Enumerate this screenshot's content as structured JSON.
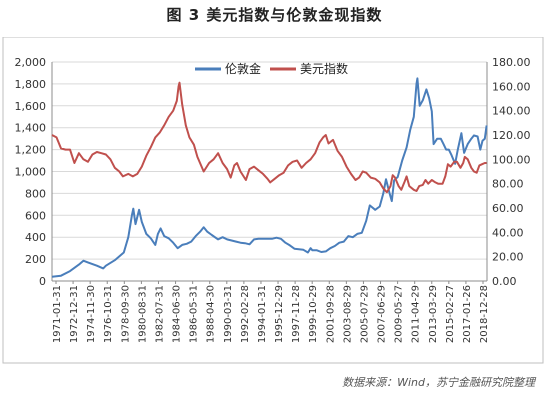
{
  "figure": {
    "title": "图 3   美元指数与伦敦金现指数",
    "source": "数据来源：Wind，苏宁金融研究院整理"
  },
  "colors": {
    "gold": "#4a7ebb",
    "dxy": "#c0504d",
    "grid": "#d9d9d9",
    "axis": "#8c8c8c",
    "frame": "#bfbfbf"
  },
  "chart_data": {
    "type": "line",
    "legend_position": "top-center",
    "grid": true,
    "x_labels": [
      "1971-01-31",
      "1972-12-31",
      "1974-11-30",
      "1976-10-31",
      "1978-09-30",
      "1980-08-31",
      "1982-07-31",
      "1984-06-30",
      "1986-05-31",
      "1988-04-30",
      "1990-03-31",
      "1992-02-28",
      "1994-01-31",
      "1995-12-29",
      "1997-11-28",
      "1999-10-29",
      "2001-09-28",
      "2003-08-29",
      "2005-07-29",
      "2007-06-29",
      "2009-05-27",
      "2011-04-29",
      "2013-03-29",
      "2015-02-27",
      "2017-01-26",
      "2018-12-28"
    ],
    "y_left": {
      "ticks": [
        "0",
        "200",
        "400",
        "600",
        "800",
        "1,000",
        "1,200",
        "1,400",
        "1,600",
        "1,800",
        "2,000"
      ],
      "lim": [
        0,
        2000
      ]
    },
    "y_right": {
      "ticks": [
        "0.00",
        "20.00",
        "40.00",
        "60.00",
        "80.00",
        "100.00",
        "120.00",
        "140.00",
        "160.00",
        "180.00"
      ],
      "lim": [
        0,
        180
      ]
    },
    "series": [
      {
        "name": "伦敦金",
        "axis": "left",
        "points": [
          [
            1971.0,
            38
          ],
          [
            1972.0,
            48
          ],
          [
            1973.0,
            90
          ],
          [
            1974.0,
            150
          ],
          [
            1974.5,
            185
          ],
          [
            1975.0,
            170
          ],
          [
            1976.0,
            140
          ],
          [
            1976.7,
            115
          ],
          [
            1977.0,
            140
          ],
          [
            1978.0,
            190
          ],
          [
            1979.0,
            260
          ],
          [
            1979.5,
            400
          ],
          [
            1979.9,
            600
          ],
          [
            1980.05,
            660
          ],
          [
            1980.3,
            520
          ],
          [
            1980.7,
            650
          ],
          [
            1981.0,
            540
          ],
          [
            1981.5,
            430
          ],
          [
            1982.0,
            390
          ],
          [
            1982.5,
            330
          ],
          [
            1982.8,
            430
          ],
          [
            1983.1,
            480
          ],
          [
            1983.5,
            410
          ],
          [
            1984.0,
            390
          ],
          [
            1984.5,
            350
          ],
          [
            1985.0,
            300
          ],
          [
            1985.5,
            330
          ],
          [
            1986.0,
            340
          ],
          [
            1986.5,
            360
          ],
          [
            1987.0,
            410
          ],
          [
            1987.5,
            450
          ],
          [
            1987.9,
            490
          ],
          [
            1988.3,
            450
          ],
          [
            1988.8,
            420
          ],
          [
            1989.5,
            380
          ],
          [
            1990.0,
            400
          ],
          [
            1990.5,
            380
          ],
          [
            1991.0,
            370
          ],
          [
            1991.5,
            360
          ],
          [
            1992.0,
            350
          ],
          [
            1992.5,
            345
          ],
          [
            1993.0,
            335
          ],
          [
            1993.5,
            380
          ],
          [
            1994.0,
            385
          ],
          [
            1994.5,
            385
          ],
          [
            1995.0,
            385
          ],
          [
            1995.5,
            385
          ],
          [
            1996.0,
            395
          ],
          [
            1996.5,
            385
          ],
          [
            1997.0,
            350
          ],
          [
            1997.5,
            325
          ],
          [
            1998.0,
            295
          ],
          [
            1998.5,
            290
          ],
          [
            1999.0,
            285
          ],
          [
            1999.5,
            260
          ],
          [
            1999.8,
            300
          ],
          [
            2000.0,
            280
          ],
          [
            2000.5,
            280
          ],
          [
            2001.0,
            265
          ],
          [
            2001.5,
            270
          ],
          [
            2002.0,
            300
          ],
          [
            2002.5,
            320
          ],
          [
            2003.0,
            350
          ],
          [
            2003.5,
            360
          ],
          [
            2004.0,
            410
          ],
          [
            2004.5,
            400
          ],
          [
            2005.0,
            430
          ],
          [
            2005.5,
            440
          ],
          [
            2006.0,
            550
          ],
          [
            2006.4,
            690
          ],
          [
            2007.0,
            650
          ],
          [
            2007.5,
            680
          ],
          [
            2007.9,
            800
          ],
          [
            2008.2,
            930
          ],
          [
            2008.6,
            800
          ],
          [
            2008.85,
            730
          ],
          [
            2009.1,
            920
          ],
          [
            2009.5,
            950
          ],
          [
            2010.0,
            1100
          ],
          [
            2010.5,
            1220
          ],
          [
            2010.9,
            1380
          ],
          [
            2011.3,
            1500
          ],
          [
            2011.6,
            1800
          ],
          [
            2011.7,
            1850
          ],
          [
            2011.95,
            1600
          ],
          [
            2012.3,
            1650
          ],
          [
            2012.7,
            1750
          ],
          [
            2013.0,
            1670
          ],
          [
            2013.3,
            1550
          ],
          [
            2013.5,
            1250
          ],
          [
            2013.9,
            1300
          ],
          [
            2014.3,
            1300
          ],
          [
            2014.6,
            1250
          ],
          [
            2014.9,
            1200
          ],
          [
            2015.2,
            1200
          ],
          [
            2015.5,
            1150
          ],
          [
            2015.9,
            1070
          ],
          [
            2016.2,
            1200
          ],
          [
            2016.6,
            1350
          ],
          [
            2016.9,
            1170
          ],
          [
            2017.3,
            1250
          ],
          [
            2017.7,
            1300
          ],
          [
            2018.0,
            1330
          ],
          [
            2018.4,
            1320
          ],
          [
            2018.7,
            1200
          ],
          [
            2018.95,
            1280
          ],
          [
            2019.2,
            1300
          ],
          [
            2019.4,
            1420
          ]
        ]
      },
      {
        "name": "美元指数",
        "axis": "right",
        "points": [
          [
            1971.0,
            120
          ],
          [
            1971.5,
            118
          ],
          [
            1972.0,
            109
          ],
          [
            1972.5,
            108
          ],
          [
            1973.0,
            108
          ],
          [
            1973.5,
            97
          ],
          [
            1974.0,
            105
          ],
          [
            1974.5,
            100
          ],
          [
            1975.0,
            98
          ],
          [
            1975.5,
            104
          ],
          [
            1976.0,
            106
          ],
          [
            1976.5,
            105
          ],
          [
            1977.0,
            104
          ],
          [
            1977.5,
            100
          ],
          [
            1978.0,
            93
          ],
          [
            1978.5,
            90
          ],
          [
            1978.9,
            86
          ],
          [
            1979.5,
            88
          ],
          [
            1980.0,
            86
          ],
          [
            1980.5,
            88
          ],
          [
            1981.0,
            94
          ],
          [
            1981.5,
            103
          ],
          [
            1982.0,
            110
          ],
          [
            1982.5,
            118
          ],
          [
            1983.0,
            122
          ],
          [
            1983.5,
            128
          ],
          [
            1984.0,
            135
          ],
          [
            1984.5,
            140
          ],
          [
            1984.9,
            148
          ],
          [
            1985.1,
            160
          ],
          [
            1985.2,
            163
          ],
          [
            1985.5,
            145
          ],
          [
            1985.9,
            128
          ],
          [
            1986.3,
            118
          ],
          [
            1986.8,
            112
          ],
          [
            1987.2,
            102
          ],
          [
            1987.9,
            90
          ],
          [
            1988.5,
            97
          ],
          [
            1989.0,
            100
          ],
          [
            1989.5,
            105
          ],
          [
            1990.0,
            97
          ],
          [
            1990.5,
            92
          ],
          [
            1990.9,
            85
          ],
          [
            1991.3,
            95
          ],
          [
            1991.6,
            97
          ],
          [
            1992.0,
            90
          ],
          [
            1992.6,
            83
          ],
          [
            1993.0,
            92
          ],
          [
            1993.5,
            94
          ],
          [
            1994.0,
            91
          ],
          [
            1994.5,
            88
          ],
          [
            1995.0,
            84
          ],
          [
            1995.3,
            81
          ],
          [
            1995.8,
            84
          ],
          [
            1996.3,
            87
          ],
          [
            1996.8,
            89
          ],
          [
            1997.3,
            95
          ],
          [
            1997.8,
            98
          ],
          [
            1998.3,
            99
          ],
          [
            1998.8,
            93
          ],
          [
            1999.3,
            97
          ],
          [
            1999.8,
            100
          ],
          [
            2000.3,
            105
          ],
          [
            2000.8,
            114
          ],
          [
            2001.2,
            118
          ],
          [
            2001.5,
            120
          ],
          [
            2001.8,
            113
          ],
          [
            2002.3,
            116
          ],
          [
            2002.8,
            107
          ],
          [
            2003.3,
            102
          ],
          [
            2003.8,
            94
          ],
          [
            2004.3,
            88
          ],
          [
            2004.8,
            83
          ],
          [
            2005.2,
            85
          ],
          [
            2005.6,
            90
          ],
          [
            2006.0,
            89
          ],
          [
            2006.5,
            85
          ],
          [
            2007.0,
            84
          ],
          [
            2007.5,
            81
          ],
          [
            2007.9,
            76
          ],
          [
            2008.3,
            73
          ],
          [
            2008.7,
            78
          ],
          [
            2008.95,
            87
          ],
          [
            2009.2,
            85
          ],
          [
            2009.6,
            78
          ],
          [
            2009.9,
            75
          ],
          [
            2010.3,
            82
          ],
          [
            2010.5,
            86
          ],
          [
            2010.8,
            78
          ],
          [
            2011.3,
            75
          ],
          [
            2011.6,
            74
          ],
          [
            2011.9,
            78
          ],
          [
            2012.3,
            79
          ],
          [
            2012.6,
            83
          ],
          [
            2012.9,
            80
          ],
          [
            2013.3,
            83
          ],
          [
            2013.7,
            81
          ],
          [
            2014.0,
            80
          ],
          [
            2014.5,
            80
          ],
          [
            2014.8,
            86
          ],
          [
            2015.1,
            96
          ],
          [
            2015.4,
            94
          ],
          [
            2015.8,
            98
          ],
          [
            2016.1,
            98
          ],
          [
            2016.5,
            93
          ],
          [
            2016.8,
            97
          ],
          [
            2016.98,
            102
          ],
          [
            2017.3,
            100
          ],
          [
            2017.7,
            93
          ],
          [
            2018.0,
            90
          ],
          [
            2018.3,
            89
          ],
          [
            2018.6,
            95
          ],
          [
            2018.9,
            96
          ],
          [
            2019.2,
            97
          ],
          [
            2019.4,
            97
          ]
        ]
      }
    ]
  }
}
